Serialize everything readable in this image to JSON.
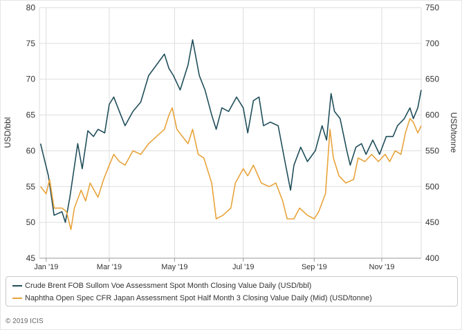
{
  "colors": {
    "brent": "#1f4e5a",
    "naphtha": "#e8a33a",
    "grid": "#dddddd",
    "axis": "#999999"
  },
  "chart_data": {
    "type": "line",
    "x_range": [
      "2019-01-01",
      "2019-12-06"
    ],
    "x_ticks": [
      {
        "date": "2019-01-07",
        "label": "Jan '19"
      },
      {
        "date": "2019-03-04",
        "label": "Mar '19"
      },
      {
        "date": "2019-05-01",
        "label": "May '19"
      },
      {
        "date": "2019-07-01",
        "label": "Jul '19"
      },
      {
        "date": "2019-09-02",
        "label": "Sep '19"
      },
      {
        "date": "2019-11-01",
        "label": "Nov '19"
      }
    ],
    "y_left": {
      "label": "USD/bbl",
      "min": 45,
      "max": 80,
      "ticks": [
        45,
        50,
        55,
        60,
        65,
        70,
        75,
        80
      ]
    },
    "y_right": {
      "label": "USD/tonne",
      "min": 400,
      "max": 750,
      "ticks": [
        400,
        450,
        500,
        550,
        600,
        650,
        700,
        750
      ]
    },
    "grid": true,
    "legend_position": "bottom",
    "series": [
      {
        "name": "Crude Brent FOB Sullom Voe Assessment Spot Month Closing Value Daily (USD/bbl)",
        "axis": "left",
        "points": [
          [
            "2019-01-02",
            61.0
          ],
          [
            "2019-01-09",
            56.5
          ],
          [
            "2019-01-14",
            51.0
          ],
          [
            "2019-01-21",
            51.5
          ],
          [
            "2019-01-24",
            50.0
          ],
          [
            "2019-01-28",
            53.5
          ],
          [
            "2019-02-04",
            61.0
          ],
          [
            "2019-02-08",
            57.5
          ],
          [
            "2019-02-13",
            62.8
          ],
          [
            "2019-02-18",
            62.0
          ],
          [
            "2019-02-22",
            63.0
          ],
          [
            "2019-02-28",
            62.5
          ],
          [
            "2019-03-04",
            66.5
          ],
          [
            "2019-03-08",
            67.5
          ],
          [
            "2019-03-13",
            65.5
          ],
          [
            "2019-03-18",
            63.5
          ],
          [
            "2019-03-25",
            65.5
          ],
          [
            "2019-04-01",
            66.8
          ],
          [
            "2019-04-08",
            70.5
          ],
          [
            "2019-04-15",
            72.0
          ],
          [
            "2019-04-22",
            73.5
          ],
          [
            "2019-04-26",
            71.5
          ],
          [
            "2019-04-30",
            70.5
          ],
          [
            "2019-05-06",
            68.5
          ],
          [
            "2019-05-13",
            72.0
          ],
          [
            "2019-05-17",
            75.5
          ],
          [
            "2019-05-23",
            70.5
          ],
          [
            "2019-05-28",
            68.5
          ],
          [
            "2019-06-03",
            65.0
          ],
          [
            "2019-06-07",
            63.0
          ],
          [
            "2019-06-12",
            66.0
          ],
          [
            "2019-06-18",
            65.5
          ],
          [
            "2019-06-25",
            67.5
          ],
          [
            "2019-07-01",
            66.0
          ],
          [
            "2019-07-05",
            62.5
          ],
          [
            "2019-07-10",
            67.0
          ],
          [
            "2019-07-15",
            67.5
          ],
          [
            "2019-07-19",
            63.5
          ],
          [
            "2019-07-25",
            64.0
          ],
          [
            "2019-08-01",
            63.5
          ],
          [
            "2019-08-07",
            58.5
          ],
          [
            "2019-08-12",
            54.5
          ],
          [
            "2019-08-15",
            58.0
          ],
          [
            "2019-08-21",
            60.5
          ],
          [
            "2019-08-27",
            58.5
          ],
          [
            "2019-09-03",
            60.0
          ],
          [
            "2019-09-09",
            63.5
          ],
          [
            "2019-09-13",
            61.5
          ],
          [
            "2019-09-17",
            68.0
          ],
          [
            "2019-09-20",
            65.5
          ],
          [
            "2019-09-25",
            64.5
          ],
          [
            "2019-10-01",
            60.0
          ],
          [
            "2019-10-04",
            58.0
          ],
          [
            "2019-10-09",
            60.5
          ],
          [
            "2019-10-14",
            61.0
          ],
          [
            "2019-10-18",
            59.5
          ],
          [
            "2019-10-24",
            61.5
          ],
          [
            "2019-10-30",
            59.5
          ],
          [
            "2019-11-05",
            62.0
          ],
          [
            "2019-11-11",
            62.0
          ],
          [
            "2019-11-15",
            63.5
          ],
          [
            "2019-11-21",
            64.5
          ],
          [
            "2019-11-26",
            66.0
          ],
          [
            "2019-11-29",
            64.5
          ],
          [
            "2019-12-03",
            66.0
          ],
          [
            "2019-12-06",
            68.5
          ]
        ]
      },
      {
        "name": "Naphtha Open Spec CFR Japan Assessment Spot Half Month 3 Closing Value Daily (Mid) (USD/tonne)",
        "axis": "right",
        "points": [
          [
            "2019-01-02",
            500
          ],
          [
            "2019-01-07",
            490
          ],
          [
            "2019-01-10",
            510
          ],
          [
            "2019-01-14",
            470
          ],
          [
            "2019-01-21",
            470
          ],
          [
            "2019-01-25",
            465
          ],
          [
            "2019-01-29",
            440
          ],
          [
            "2019-02-01",
            470
          ],
          [
            "2019-02-07",
            495
          ],
          [
            "2019-02-11",
            480
          ],
          [
            "2019-02-15",
            505
          ],
          [
            "2019-02-22",
            485
          ],
          [
            "2019-02-27",
            510
          ],
          [
            "2019-03-04",
            530
          ],
          [
            "2019-03-08",
            545
          ],
          [
            "2019-03-13",
            535
          ],
          [
            "2019-03-18",
            530
          ],
          [
            "2019-03-25",
            550
          ],
          [
            "2019-04-01",
            545
          ],
          [
            "2019-04-08",
            560
          ],
          [
            "2019-04-15",
            570
          ],
          [
            "2019-04-22",
            580
          ],
          [
            "2019-04-26",
            600
          ],
          [
            "2019-04-29",
            610
          ],
          [
            "2019-05-03",
            580
          ],
          [
            "2019-05-08",
            570
          ],
          [
            "2019-05-13",
            560
          ],
          [
            "2019-05-17",
            580
          ],
          [
            "2019-05-22",
            545
          ],
          [
            "2019-05-27",
            540
          ],
          [
            "2019-06-03",
            505
          ],
          [
            "2019-06-07",
            455
          ],
          [
            "2019-06-13",
            460
          ],
          [
            "2019-06-20",
            470
          ],
          [
            "2019-06-24",
            505
          ],
          [
            "2019-07-01",
            525
          ],
          [
            "2019-07-05",
            515
          ],
          [
            "2019-07-10",
            530
          ],
          [
            "2019-07-17",
            505
          ],
          [
            "2019-07-24",
            500
          ],
          [
            "2019-07-30",
            505
          ],
          [
            "2019-08-05",
            480
          ],
          [
            "2019-08-09",
            455
          ],
          [
            "2019-08-15",
            455
          ],
          [
            "2019-08-20",
            470
          ],
          [
            "2019-08-27",
            460
          ],
          [
            "2019-09-02",
            455
          ],
          [
            "2019-09-06",
            465
          ],
          [
            "2019-09-12",
            490
          ],
          [
            "2019-09-16",
            580
          ],
          [
            "2019-09-19",
            540
          ],
          [
            "2019-09-24",
            515
          ],
          [
            "2019-09-30",
            505
          ],
          [
            "2019-10-07",
            510
          ],
          [
            "2019-10-11",
            540
          ],
          [
            "2019-10-17",
            535
          ],
          [
            "2019-10-23",
            545
          ],
          [
            "2019-10-29",
            535
          ],
          [
            "2019-11-04",
            545
          ],
          [
            "2019-11-08",
            535
          ],
          [
            "2019-11-13",
            550
          ],
          [
            "2019-11-18",
            545
          ],
          [
            "2019-11-22",
            575
          ],
          [
            "2019-11-26",
            595
          ],
          [
            "2019-11-29",
            590
          ],
          [
            "2019-12-03",
            575
          ],
          [
            "2019-12-06",
            585
          ]
        ]
      }
    ]
  },
  "copyright": "© 2019 ICIS"
}
